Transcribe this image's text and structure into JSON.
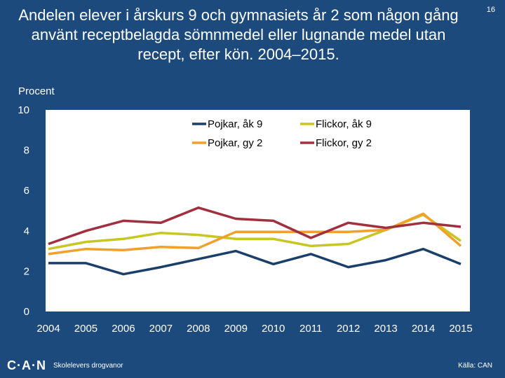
{
  "slide": {
    "page_number": "16",
    "footer_logo": "C·A·N",
    "footer_subtitle": "Skolelevers drogvanor",
    "footer_source": "Källa: CAN"
  },
  "chart_data": {
    "type": "line",
    "title": "Andelen elever i årskurs 9 och gymnasiets år 2 som någon gång använt receptbelagda sömnmedel eller lugnande medel utan recept, efter kön.  2004–2015.",
    "ylabel": "Procent",
    "xlabel": "",
    "x": [
      "2004",
      "2005",
      "2006",
      "2007",
      "2008",
      "2009",
      "2010",
      "2011",
      "2012",
      "2013",
      "2014",
      "2015"
    ],
    "ylim": [
      0,
      10
    ],
    "yticks": [
      "0",
      "2",
      "4",
      "6",
      "8",
      "10"
    ],
    "grid": false,
    "legend": "top-right",
    "series": [
      {
        "name": "Pojkar, åk 9",
        "color": "#1b3f6b",
        "values": [
          2.4,
          2.4,
          1.85,
          2.2,
          2.6,
          3.0,
          2.35,
          2.85,
          2.2,
          2.55,
          3.1,
          2.35
        ]
      },
      {
        "name": "Flickor, åk 9",
        "color": "#c8c624",
        "values": [
          3.1,
          3.45,
          3.6,
          3.9,
          3.8,
          3.6,
          3.6,
          3.25,
          3.35,
          4.05,
          4.8,
          3.5
        ]
      },
      {
        "name": "Pojkar, gy 2",
        "color": "#f0a12c",
        "values": [
          2.85,
          3.1,
          3.05,
          3.2,
          3.15,
          3.95,
          3.95,
          3.95,
          3.95,
          4.05,
          4.85,
          3.25
        ]
      },
      {
        "name": "Flickor, gy 2",
        "color": "#a12f3d",
        "values": [
          3.35,
          4.0,
          4.5,
          4.4,
          5.15,
          4.6,
          4.5,
          3.65,
          4.4,
          4.15,
          4.4,
          4.2
        ]
      }
    ]
  }
}
